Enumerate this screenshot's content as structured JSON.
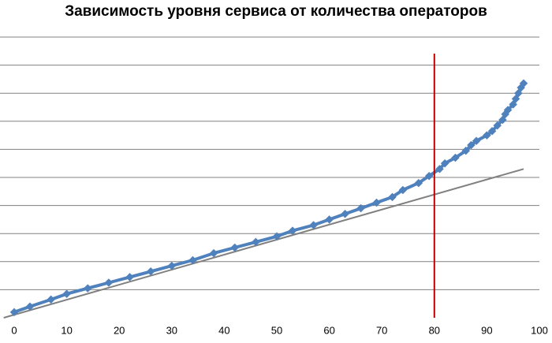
{
  "chart_data": {
    "type": "line",
    "title": "Зависимость уровня сервиса от количества операторов",
    "xlabel": "",
    "ylabel": "",
    "xlim": [
      0,
      100
    ],
    "ylim": [
      0,
      10
    ],
    "x_ticks": [
      "0",
      "10",
      "20",
      "30",
      "40",
      "50",
      "60",
      "70",
      "80",
      "90",
      "100"
    ],
    "y_ticks_labeled": false,
    "grid": "horizontal",
    "legend": "none",
    "colors": {
      "series": "#4f81bd",
      "trend": "#808080",
      "vline": "#c00000",
      "grid": "#808080"
    },
    "series": [
      {
        "x": [
          0,
          3,
          7,
          10,
          14,
          18,
          22,
          26,
          30,
          34,
          38,
          42,
          46,
          50,
          53,
          57,
          60,
          63,
          66,
          69,
          72,
          74,
          77,
          79,
          81,
          82,
          84,
          86,
          87,
          88,
          90,
          91,
          92,
          93,
          93.5,
          94,
          95,
          95.5,
          96,
          96.5,
          97
        ],
        "y": [
          0.2,
          0.4,
          0.65,
          0.85,
          1.05,
          1.25,
          1.45,
          1.65,
          1.85,
          2.05,
          2.3,
          2.5,
          2.7,
          2.9,
          3.1,
          3.3,
          3.5,
          3.7,
          3.9,
          4.1,
          4.3,
          4.55,
          4.8,
          5.05,
          5.3,
          5.5,
          5.7,
          5.95,
          6.15,
          6.3,
          6.5,
          6.65,
          6.85,
          7.05,
          7.25,
          7.4,
          7.6,
          7.8,
          8.0,
          8.2,
          8.35
        ]
      }
    ],
    "trendline": {
      "x": [
        -2,
        97
      ],
      "y": [
        0.0,
        5.3
      ]
    },
    "vertical_line_x": 80
  }
}
